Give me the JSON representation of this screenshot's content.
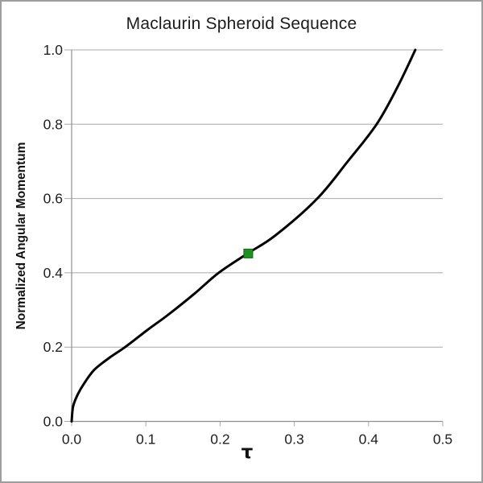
{
  "window": {
    "background": "#ffffff",
    "frame_border_color": "#9e9e9e"
  },
  "chart_data": {
    "type": "line",
    "title": "Maclaurin Spheroid Sequence",
    "xlabel": "τ",
    "ylabel": "Normalized Angular Momentum",
    "xlim": [
      0.0,
      0.5
    ],
    "ylim": [
      0.0,
      1.0
    ],
    "x_ticks": [
      0.0,
      0.1,
      0.2,
      0.3,
      0.4,
      0.5
    ],
    "x_tick_labels": [
      "0.0",
      "0.1",
      "0.2",
      "0.3",
      "0.4",
      "0.5"
    ],
    "y_ticks": [
      0.0,
      0.2,
      0.4,
      0.6,
      0.8,
      1.0
    ],
    "y_tick_labels": [
      "0.0",
      "0.2",
      "0.4",
      "0.6",
      "0.8",
      "1.0"
    ],
    "grid": "horizontal-only",
    "legend": "none",
    "series": [
      {
        "name": "maclaurin-sequence-curve",
        "color": "#000000",
        "line_width": 3,
        "points": [
          [
            0.0,
            0.0
          ],
          [
            0.002,
            0.04
          ],
          [
            0.008,
            0.072
          ],
          [
            0.016,
            0.1
          ],
          [
            0.03,
            0.138
          ],
          [
            0.05,
            0.17
          ],
          [
            0.072,
            0.2
          ],
          [
            0.102,
            0.246
          ],
          [
            0.13,
            0.287
          ],
          [
            0.165,
            0.343
          ],
          [
            0.198,
            0.4
          ],
          [
            0.237,
            0.452
          ],
          [
            0.274,
            0.5
          ],
          [
            0.33,
            0.598
          ],
          [
            0.372,
            0.7
          ],
          [
            0.411,
            0.8
          ],
          [
            0.439,
            0.9
          ],
          [
            0.463,
            1.0
          ]
        ]
      }
    ],
    "marker": {
      "name": "highlighted-point",
      "x": 0.238,
      "y": 0.452,
      "shape": "square",
      "size": 11,
      "fill": "#1e9122",
      "stroke": "#0f6a14"
    },
    "colors": {
      "axis": "#8f8f8f",
      "grid": "#a8a8a8",
      "tick_text": "#1f1f1f"
    }
  }
}
